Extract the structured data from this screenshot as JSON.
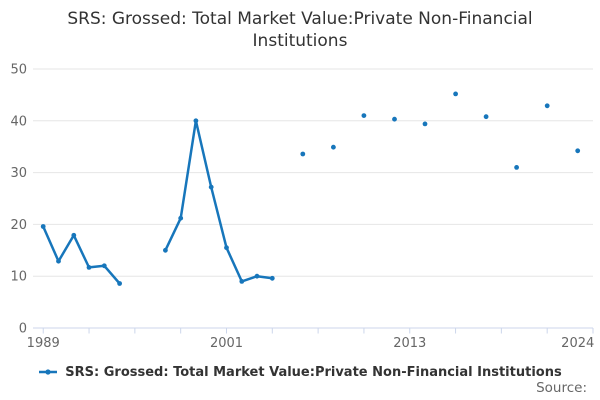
{
  "title": {
    "text": "SRS: Grossed: Total Market Value:Private Non-Financial Institutions"
  },
  "legend": {
    "label": "SRS: Grossed: Total Market Value:Private Non-Financial Institutions"
  },
  "source": {
    "label": "Source:"
  },
  "colors": {
    "series": "#1776bb",
    "axis_line": "#ccd6eb",
    "gridline": "#e6e6e6",
    "tick_label": "#666666",
    "title": "#333333"
  },
  "chart_data": {
    "type": "line",
    "title": "SRS: Grossed: Total Market Value:Private Non-Financial Institutions",
    "xlabel": "",
    "ylabel": "",
    "x": [
      1989,
      1990,
      1991,
      1992,
      1993,
      1994,
      1995,
      1996,
      1997,
      1998,
      1999,
      2000,
      2001,
      2002,
      2003,
      2004,
      2005,
      2006,
      2007,
      2008,
      2009,
      2010,
      2011,
      2012,
      2013,
      2014,
      2015,
      2016,
      2017,
      2018,
      2019,
      2020,
      2021,
      2022,
      2023,
      2024
    ],
    "series": [
      {
        "name": "SRS: Grossed: Total Market Value:Private Non-Financial Institutions",
        "values": [
          19.6,
          12.9,
          17.9,
          11.7,
          12.0,
          8.6,
          null,
          null,
          15.0,
          21.2,
          40.0,
          27.2,
          15.5,
          9.0,
          10.0,
          9.6,
          null,
          33.6,
          null,
          34.9,
          null,
          41.0,
          null,
          40.3,
          null,
          39.4,
          null,
          45.2,
          null,
          40.8,
          null,
          31.0,
          null,
          42.9,
          null,
          34.2
        ]
      }
    ],
    "ylim": [
      0,
      50
    ],
    "yticks": [
      0,
      10,
      20,
      30,
      40,
      50
    ],
    "xlim": [
      1988.33,
      2025.0
    ],
    "xticks": [
      1989,
      1992,
      1995,
      1998,
      2001,
      2004,
      2007,
      2010,
      2013,
      2016,
      2019,
      2022,
      2025
    ],
    "xticks_labeled": [
      1989,
      2001,
      2013,
      2024
    ],
    "grid": "horizontal",
    "legend_position": "bottom",
    "marker": "circle"
  }
}
